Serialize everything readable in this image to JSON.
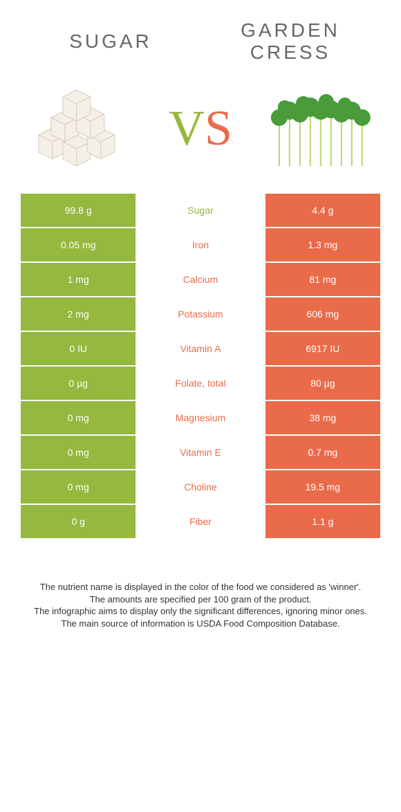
{
  "colors": {
    "left": "#95b83e",
    "right": "#ea6b4a",
    "mid_left_text": "#95b83e",
    "mid_right_text": "#ea6b4a",
    "title_text": "#666666",
    "footer_text": "#333333",
    "bg": "#ffffff"
  },
  "header": {
    "left_title": "Sugar",
    "right_title_line1": "Garden",
    "right_title_line2": "cress",
    "vs_v": "V",
    "vs_s": "S"
  },
  "rows": [
    {
      "left": "99.8 g",
      "label": "Sugar",
      "right": "4.4 g",
      "winner": "left"
    },
    {
      "left": "0.05 mg",
      "label": "Iron",
      "right": "1.3 mg",
      "winner": "right"
    },
    {
      "left": "1 mg",
      "label": "Calcium",
      "right": "81 mg",
      "winner": "right"
    },
    {
      "left": "2 mg",
      "label": "Potassium",
      "right": "606 mg",
      "winner": "right"
    },
    {
      "left": "0 IU",
      "label": "Vitamin A",
      "right": "6917 IU",
      "winner": "right"
    },
    {
      "left": "0 µg",
      "label": "Folate, total",
      "right": "80 µg",
      "winner": "right"
    },
    {
      "left": "0 mg",
      "label": "Magnesium",
      "right": "38 mg",
      "winner": "right"
    },
    {
      "left": "0 mg",
      "label": "Vitamin E",
      "right": "0.7 mg",
      "winner": "right"
    },
    {
      "left": "0 mg",
      "label": "Choline",
      "right": "19.5 mg",
      "winner": "right"
    },
    {
      "left": "0 g",
      "label": "Fiber",
      "right": "1.1 g",
      "winner": "right"
    }
  ],
  "notes": {
    "line1": "The nutrient name is displayed in the color of the food we considered as 'winner'.",
    "line2": "The amounts are specified per 100 gram of the product.",
    "line3": "The infographic aims to display only the significant differences, ignoring minor ones.",
    "line4": "The main source of information is USDA Food Composition Database."
  }
}
